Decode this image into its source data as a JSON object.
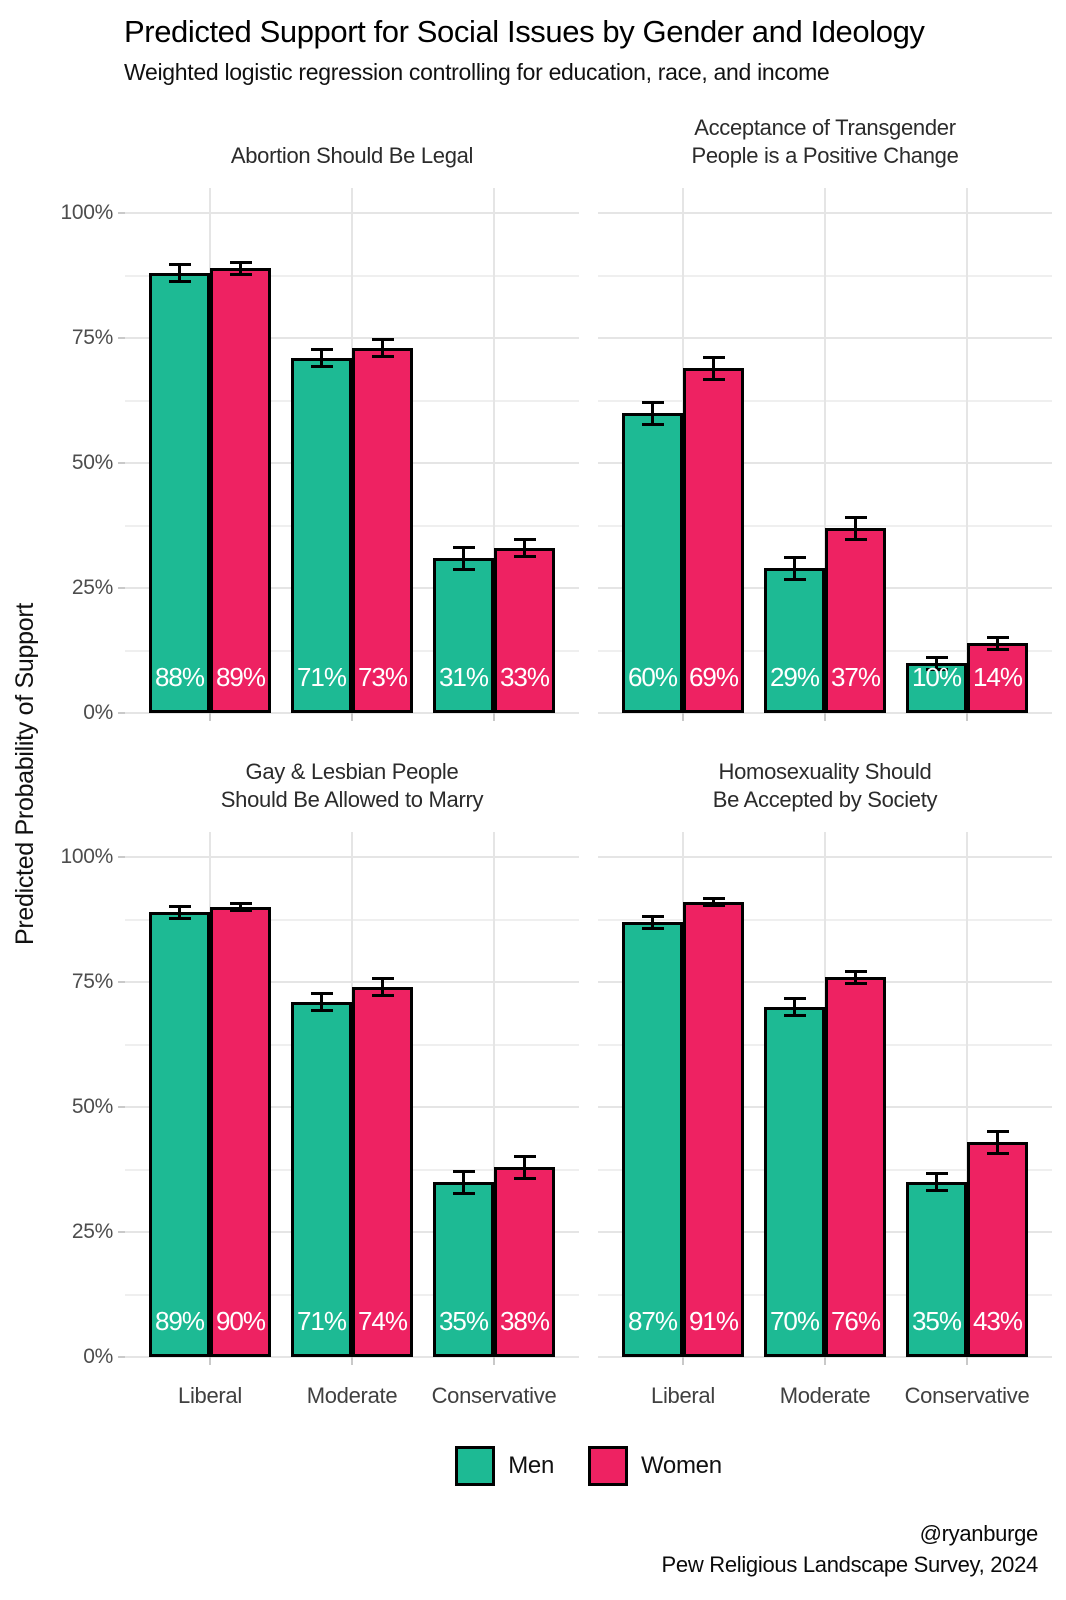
{
  "chart_data": {
    "type": "bar",
    "title": "Predicted Support for Social Issues by Gender and Ideology",
    "subtitle": "Weighted logistic regression controlling for education, race, and income",
    "ylabel": "Predicted Probability of Support",
    "ylim": [
      0,
      100
    ],
    "y_ticks": [
      {
        "value": 0,
        "label": "0%"
      },
      {
        "value": 25,
        "label": "25%"
      },
      {
        "value": 50,
        "label": "50%"
      },
      {
        "value": 75,
        "label": "75%"
      },
      {
        "value": 100,
        "label": "100%"
      }
    ],
    "y_minor_ticks": [
      12.5,
      37.5,
      62.5,
      87.5
    ],
    "categories": [
      "Liberal",
      "Moderate",
      "Conservative"
    ],
    "colors": {
      "men": "#1dba94",
      "women": "#ee2262",
      "bar_border": "#000000",
      "error_bar": "#000000"
    },
    "grid": {
      "major": true,
      "minor": true,
      "vertical": true
    },
    "legend": {
      "position": "bottom",
      "items": [
        {
          "label": "Men",
          "color_key": "men"
        },
        {
          "label": "Women",
          "color_key": "women"
        }
      ]
    },
    "facets": [
      {
        "title": "Abortion Should Be Legal",
        "series": [
          {
            "name": "Men",
            "values": [
              88,
              71,
              31
            ],
            "errors": [
              2,
              2,
              2.5
            ],
            "labels": [
              "88%",
              "71%",
              "31%"
            ]
          },
          {
            "name": "Women",
            "values": [
              89,
              73,
              33
            ],
            "errors": [
              1.5,
              2,
              2
            ],
            "labels": [
              "89%",
              "73%",
              "33%"
            ]
          }
        ]
      },
      {
        "title": "Acceptance of Transgender\nPeople is a Positive Change",
        "series": [
          {
            "name": "Men",
            "values": [
              60,
              29,
              10
            ],
            "errors": [
              2.5,
              2.5,
              1.5
            ],
            "labels": [
              "60%",
              "29%",
              "10%"
            ]
          },
          {
            "name": "Women",
            "values": [
              69,
              37,
              14
            ],
            "errors": [
              2.5,
              2.5,
              1.5
            ],
            "labels": [
              "69%",
              "37%",
              "14%"
            ]
          }
        ]
      },
      {
        "title": "Gay & Lesbian People\nShould Be Allowed to Marry",
        "series": [
          {
            "name": "Men",
            "values": [
              89,
              71,
              35
            ],
            "errors": [
              1.5,
              2,
              2.5
            ],
            "labels": [
              "89%",
              "71%",
              "35%"
            ]
          },
          {
            "name": "Women",
            "values": [
              90,
              74,
              38
            ],
            "errors": [
              1,
              2,
              2.5
            ],
            "labels": [
              "90%",
              "74%",
              "38%"
            ]
          }
        ]
      },
      {
        "title": "Homosexuality Should\nBe Accepted by Society",
        "series": [
          {
            "name": "Men",
            "values": [
              87,
              70,
              35
            ],
            "errors": [
              1.5,
              2,
              2
            ],
            "labels": [
              "87%",
              "70%",
              "35%"
            ]
          },
          {
            "name": "Women",
            "values": [
              91,
              76,
              43
            ],
            "errors": [
              1,
              1.5,
              2.5
            ],
            "labels": [
              "91%",
              "76%",
              "43%"
            ]
          }
        ]
      }
    ],
    "caption_lines": [
      "@ryanburge",
      "Pew Religious Landscape Survey, 2024"
    ]
  }
}
